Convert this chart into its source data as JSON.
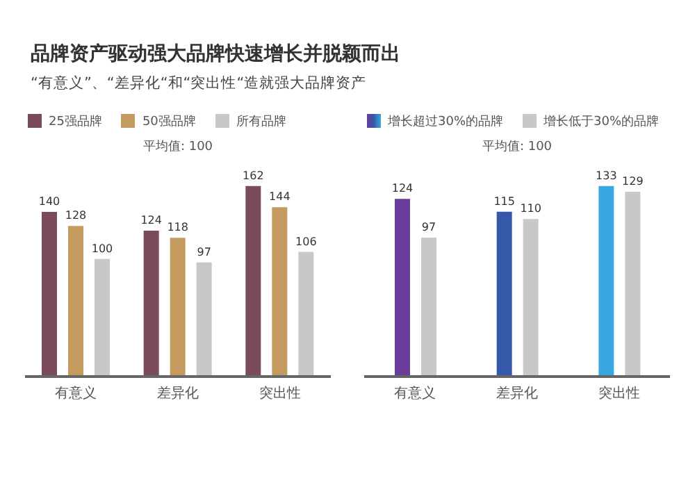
{
  "chart_data": [
    {
      "type": "bar",
      "title": "品牌资产驱动强大品牌快速增长并脱颖而出",
      "subtitle": "“有意义”、“差异化“和“突出性“造就强大品牌资产",
      "categories": [
        "有意义",
        "差异化",
        "突出性"
      ],
      "series": [
        {
          "name": "25强品牌",
          "color": "#7b4a5c",
          "values": [
            140,
            124,
            162
          ]
        },
        {
          "name": "50强品牌",
          "color": "#c49a5e",
          "values": [
            128,
            118,
            144
          ]
        },
        {
          "name": "所有品牌",
          "color": "#c8c8c8",
          "values": [
            100,
            97,
            106
          ]
        }
      ],
      "annotations": [
        "平均值: 100"
      ],
      "data_labels": true,
      "legend": "top",
      "grid": false
    },
    {
      "type": "bar",
      "categories": [
        "有意义",
        "差异化",
        "突出性"
      ],
      "series": [
        {
          "name": "增长超过30%的品牌",
          "color": "#5a4fb0",
          "colors": [
            "#6a3d9a",
            "#3558a8",
            "#3aa8e0"
          ],
          "values": [
            124,
            115,
            133
          ]
        },
        {
          "name": "增长低于30%的品牌",
          "color": "#c8c8c8",
          "values": [
            97,
            110,
            129
          ]
        }
      ],
      "annotations": [
        "平均值: 100"
      ],
      "data_labels": true,
      "legend": "top",
      "grid": false
    }
  ]
}
